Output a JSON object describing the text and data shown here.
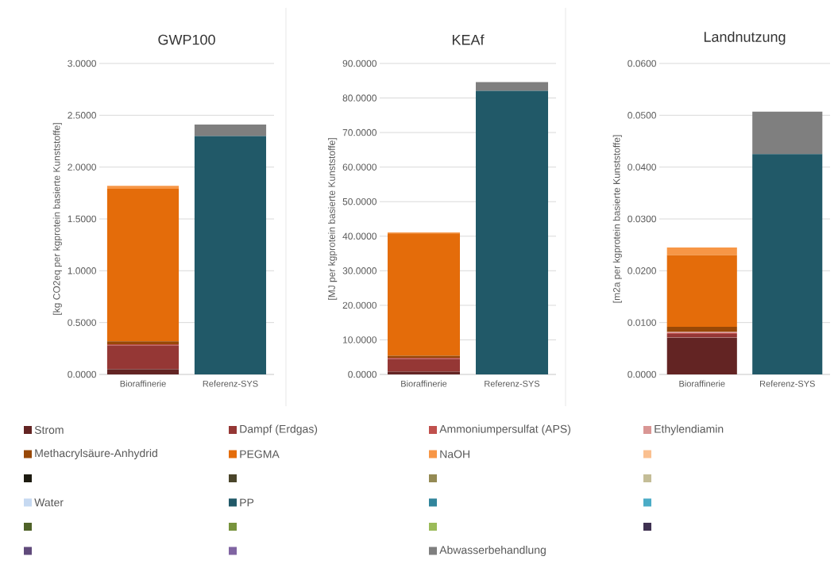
{
  "chart_data": [
    {
      "type": "bar",
      "title": "GWP100",
      "ylabel": "[kg CO2eq per kgprotein basierte Kunststoffe]",
      "categories": [
        "Bioraffinerie",
        "Referenz-SYS"
      ],
      "stacked": true,
      "grid": "y",
      "legend": "bottom",
      "ylim": [
        0,
        3
      ],
      "yticks": [
        {
          "value": 0,
          "label": "0.0000"
        },
        {
          "value": 0.5,
          "label": "0.5000"
        },
        {
          "value": 1,
          "label": "1.0000"
        },
        {
          "value": 1.5,
          "label": "1.5000"
        },
        {
          "value": 2,
          "label": "2.0000"
        },
        {
          "value": 2.5,
          "label": "2.5000"
        },
        {
          "value": 3,
          "label": "3.0000"
        }
      ],
      "series": [
        {
          "name": "Strom",
          "color": "#632423",
          "values": [
            0.05,
            0
          ]
        },
        {
          "name": "Dampf (Erdgas)",
          "color": "#953735",
          "values": [
            0.23,
            0
          ]
        },
        {
          "name": "Ammoniumpersulfat (APS)",
          "color": "#c0504d",
          "values": [
            0.01,
            0
          ]
        },
        {
          "name": "Ethylendiamin",
          "color": "#d99694",
          "values": [
            0,
            0
          ]
        },
        {
          "name": "Methacrylsäure-Anhydrid",
          "color": "#984807",
          "values": [
            0.03,
            0
          ]
        },
        {
          "name": "PEGMA",
          "color": "#e46c0a",
          "values": [
            1.47,
            0
          ]
        },
        {
          "name": "NaOH",
          "color": "#f79646",
          "values": [
            0.03,
            0
          ]
        },
        {
          "color": "#fac090",
          "values": [
            0,
            0
          ]
        },
        {
          "color": "#1d1b10",
          "values": [
            0,
            0
          ]
        },
        {
          "color": "#4a452a",
          "values": [
            0,
            0
          ]
        },
        {
          "color": "#948a54",
          "values": [
            0,
            0
          ]
        },
        {
          "color": "#c4bd97",
          "values": [
            0,
            0
          ]
        },
        {
          "name": "Water",
          "color": "#c6d9f1",
          "values": [
            0,
            0
          ]
        },
        {
          "name": "PP",
          "color": "#215968",
          "values": [
            0,
            2.3
          ]
        },
        {
          "color": "#31859c",
          "values": [
            0,
            0
          ]
        },
        {
          "color": "#4bacc6",
          "values": [
            0,
            0
          ]
        },
        {
          "color": "#4f6228",
          "values": [
            0,
            0
          ]
        },
        {
          "color": "#77933c",
          "values": [
            0,
            0
          ]
        },
        {
          "color": "#9bbb59",
          "values": [
            0,
            0
          ]
        },
        {
          "color": "#3f3151",
          "values": [
            0,
            0
          ]
        },
        {
          "color": "#604a7b",
          "values": [
            0,
            0
          ]
        },
        {
          "color": "#8064a2",
          "values": [
            0,
            0
          ]
        },
        {
          "name": "Abwasserbehandlung",
          "color": "#7f7f7f",
          "values": [
            0,
            0.11
          ]
        }
      ]
    },
    {
      "type": "bar",
      "title": "KEAf",
      "ylabel": "[MJ per kgprotein basierte Kunststoffe]",
      "categories": [
        "Bioraffinerie",
        "Referenz-SYS"
      ],
      "stacked": true,
      "grid": "y",
      "ylim": [
        0,
        90
      ],
      "yticks": [
        {
          "value": 0,
          "label": "0.0000"
        },
        {
          "value": 10,
          "label": "10.0000"
        },
        {
          "value": 20,
          "label": "20.0000"
        },
        {
          "value": 30,
          "label": "30.0000"
        },
        {
          "value": 40,
          "label": "40.0000"
        },
        {
          "value": 50,
          "label": "50.0000"
        },
        {
          "value": 60,
          "label": "60.0000"
        },
        {
          "value": 70,
          "label": "70.0000"
        },
        {
          "value": 80,
          "label": "80.0000"
        },
        {
          "value": 90,
          "label": "90.0000"
        }
      ],
      "series": [
        {
          "color": "#632423",
          "values": [
            0.8,
            0
          ]
        },
        {
          "color": "#953735",
          "values": [
            3.7,
            0
          ]
        },
        {
          "color": "#c0504d",
          "values": [
            0.3,
            0
          ]
        },
        {
          "color": "#984807",
          "values": [
            0.6,
            0
          ]
        },
        {
          "color": "#e46c0a",
          "values": [
            35.4,
            0
          ]
        },
        {
          "color": "#f79646",
          "values": [
            0.3,
            0
          ]
        },
        {
          "color": "#215968",
          "values": [
            0,
            82.1
          ]
        },
        {
          "color": "#7f7f7f",
          "values": [
            0,
            2.5
          ]
        }
      ]
    },
    {
      "type": "bar",
      "title": "Landnutzung",
      "ylabel": "[m2a per kgprotein basierte Kunststoffe]",
      "categories": [
        "Bioraffinerie",
        "Referenz-SYS"
      ],
      "stacked": true,
      "grid": "y",
      "ylim": [
        0,
        0.06
      ],
      "yticks": [
        {
          "value": 0,
          "label": "0.0000"
        },
        {
          "value": 0.01,
          "label": "0.0100"
        },
        {
          "value": 0.02,
          "label": "0.0200"
        },
        {
          "value": 0.03,
          "label": "0.0300"
        },
        {
          "value": 0.04,
          "label": "0.0400"
        },
        {
          "value": 0.05,
          "label": "0.0500"
        },
        {
          "value": 0.06,
          "label": "0.0600"
        }
      ],
      "series": [
        {
          "color": "#632423",
          "values": [
            0.0071,
            0
          ]
        },
        {
          "color": "#953735",
          "values": [
            0.0007,
            0
          ]
        },
        {
          "color": "#c0504d",
          "values": [
            0.0002,
            0
          ]
        },
        {
          "color": "#d99694",
          "values": [
            0.0002,
            0
          ]
        },
        {
          "color": "#984807",
          "values": [
            0.001,
            0
          ]
        },
        {
          "color": "#e46c0a",
          "values": [
            0.0138,
            0
          ]
        },
        {
          "color": "#f79646",
          "values": [
            0.0015,
            0
          ]
        },
        {
          "color": "#215968",
          "values": [
            0,
            0.0425
          ]
        },
        {
          "color": "#7f7f7f",
          "values": [
            0,
            0.0082
          ]
        }
      ]
    }
  ]
}
